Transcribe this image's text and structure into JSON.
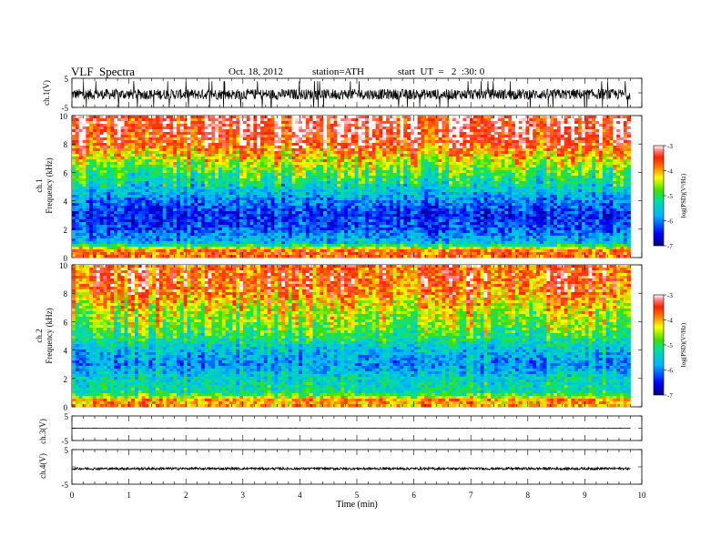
{
  "header": {
    "title": "VLF  Spectra",
    "date": "Oct. 18, 2012",
    "station": "station=ATH",
    "start": "start  UT  =   2  :30: 0"
  },
  "chart_data": [
    {
      "type": "line",
      "panel": "ch1-waveform",
      "ylabel": "ch.1(V)",
      "ylim": [
        -5,
        5
      ],
      "y_ticks": [
        "5",
        "-5"
      ],
      "xlim": [
        0,
        10
      ],
      "description_values": {
        "baseline": -0.5,
        "noise_amplitude": 1.8,
        "data_end_min": 9.8
      },
      "color": "#000000"
    },
    {
      "type": "heatmap",
      "panel": "ch1-spectrogram",
      "ylabel": "Frequency  (kHz)",
      "channel": "ch.1",
      "xlim": [
        0,
        10
      ],
      "ylim": [
        0,
        10
      ],
      "y_ticks": [
        "0",
        "2",
        "4",
        "6",
        "8",
        "10"
      ],
      "data_end_min": 9.8,
      "log_psd_by_frequency_khz": {
        "0.5": -3.8,
        "1.0": -5.6,
        "2.0": -6.2,
        "3.0": -6.4,
        "4.0": -6.0,
        "5.0": -5.4,
        "6.0": -4.9,
        "7.0": -4.3,
        "8.0": -3.6,
        "9.0": -3.3,
        "10.0": -3.3
      },
      "colorbar": {
        "label": "log(PSD)(V²/Hz)",
        "range": [
          -7,
          -3
        ],
        "ticks": [
          "-3",
          "-4",
          "-5",
          "-6",
          "-7"
        ]
      }
    },
    {
      "type": "heatmap",
      "panel": "ch2-spectrogram",
      "ylabel": "Frequency  (kHz)",
      "channel": "ch.2",
      "xlim": [
        0,
        10
      ],
      "ylim": [
        0,
        10
      ],
      "y_ticks": [
        "0",
        "2",
        "4",
        "6",
        "8",
        "10"
      ],
      "data_end_min": 9.8,
      "log_psd_by_frequency_khz": {
        "0.5": -4.0,
        "1.0": -5.2,
        "2.0": -5.4,
        "3.0": -5.9,
        "4.0": -5.6,
        "5.0": -5.0,
        "6.0": -4.6,
        "7.0": -4.3,
        "8.0": -3.8,
        "9.0": -3.6,
        "10.0": -3.7
      },
      "colorbar": {
        "label": "log(PSD)(V²/Hz)",
        "range": [
          -7,
          -3
        ],
        "ticks": [
          "-3",
          "-4",
          "-5",
          "-6",
          "-7"
        ]
      }
    },
    {
      "type": "line",
      "panel": "ch3-waveform",
      "ylabel": "ch.3(V)",
      "ylim": [
        -5,
        5
      ],
      "y_ticks": [
        "5",
        "-5"
      ],
      "xlim": [
        0,
        10
      ],
      "description_values": {
        "baseline": 0.0,
        "noise_amplitude": 0.1,
        "data_end_min": 9.8
      },
      "color": "#000000"
    },
    {
      "type": "line",
      "panel": "ch4-waveform",
      "ylabel": "ch.4(V)",
      "ylim": [
        -5,
        5
      ],
      "y_ticks": [
        "5",
        "-5"
      ],
      "xlim": [
        0,
        10
      ],
      "x_ticks": [
        "0",
        "1",
        "2",
        "3",
        "4",
        "5",
        "6",
        "7",
        "8",
        "9",
        "10"
      ],
      "xlabel": "Time  (min)",
      "description_values": {
        "baseline": -0.5,
        "noise_amplitude": 0.35,
        "data_end_min": 9.8
      },
      "color": "#000000"
    }
  ]
}
